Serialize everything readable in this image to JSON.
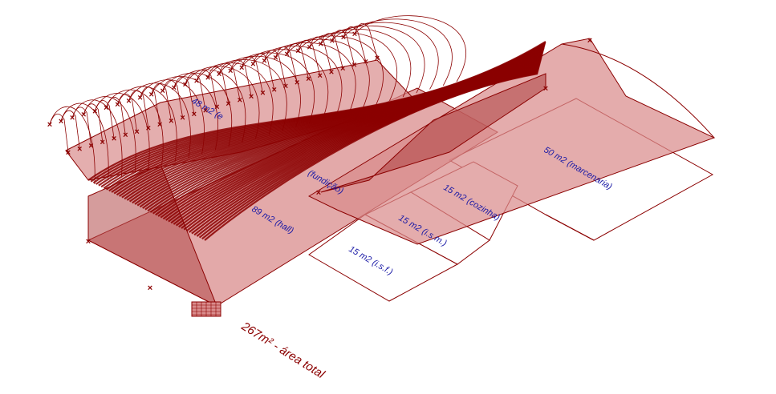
{
  "colors": {
    "line": "#8b0000",
    "fill": "#d98c8c",
    "fill_dark": "#b34a4a",
    "label": "#1a1aa6",
    "background": "#ffffff"
  },
  "diagram": {
    "total_label": "267m² - área total",
    "rooms": [
      {
        "id": "marcenaria",
        "label": "50 m2 (marcenaria)"
      },
      {
        "id": "cozinha",
        "label": "15 m2 (cozinha)"
      },
      {
        "id": "ism",
        "label": "15 m2 (i.s.m.)"
      },
      {
        "id": "isf",
        "label": "15 m2 (i.s.f.)"
      },
      {
        "id": "hall",
        "label": "89 m2 (hall)"
      },
      {
        "id": "fundicao",
        "label": "(fundição)"
      },
      {
        "id": "upper",
        "label": "48 m2 (e"
      }
    ],
    "marker": "×"
  }
}
